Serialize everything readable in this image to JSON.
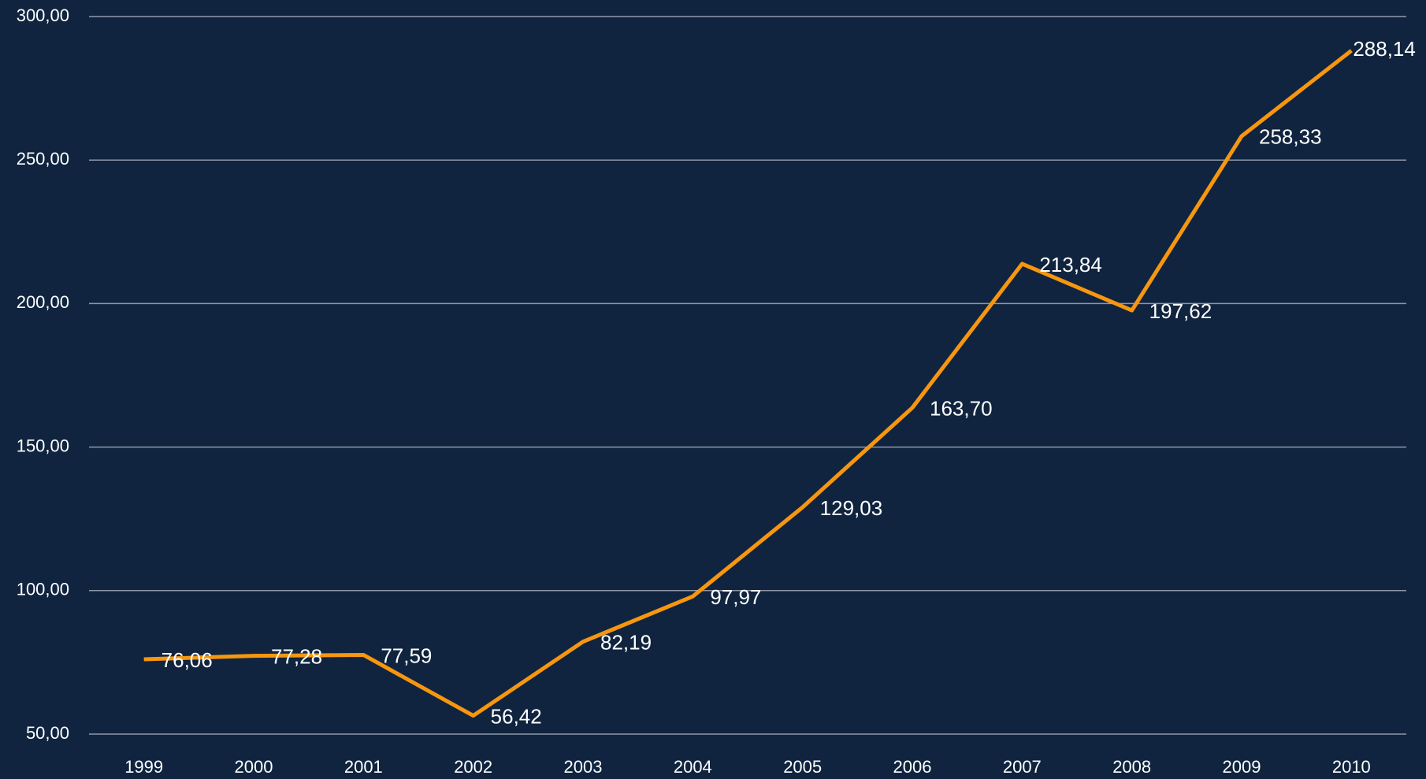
{
  "chart_data": {
    "type": "line",
    "categories": [
      "1999",
      "2000",
      "2001",
      "2002",
      "2003",
      "2004",
      "2005",
      "2006",
      "2007",
      "2008",
      "2009",
      "2010"
    ],
    "series": [
      {
        "color": "#f7960f",
        "values": [
          76.06,
          77.28,
          77.59,
          56.42,
          82.19,
          97.97,
          129.03,
          163.7,
          213.84,
          197.62,
          258.33,
          288.14
        ],
        "value_labels": [
          "76,06",
          "77,28",
          "77,59",
          "56,42",
          "82,19",
          "97,97",
          "129,03",
          "163,70",
          "213,84",
          "197,62",
          "258,33",
          "288,14"
        ]
      }
    ],
    "ylim": [
      50,
      300
    ],
    "yticks": [
      {
        "value": 50,
        "label": "50,00"
      },
      {
        "value": 100,
        "label": "100,00"
      },
      {
        "value": 150,
        "label": "150,00"
      },
      {
        "value": 200,
        "label": "200,00"
      },
      {
        "value": 250,
        "label": "250,00"
      },
      {
        "value": 300,
        "label": "300,00"
      }
    ],
    "grid": true
  }
}
